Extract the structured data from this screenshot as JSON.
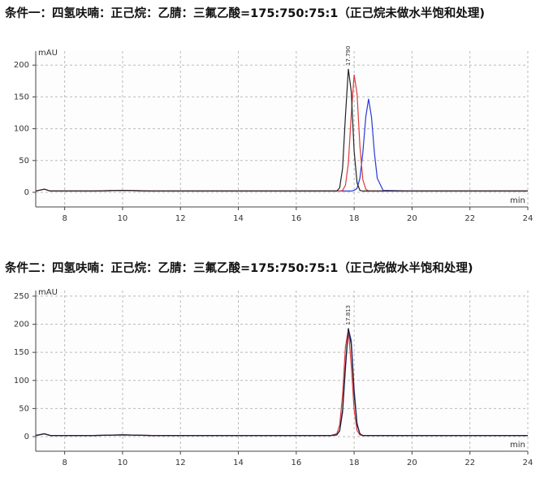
{
  "chart_data": [
    {
      "type": "line",
      "title": "条件一：四氢呋喃：正己烷：乙腈：三氟乙酸=175:750:75:1（正己烷未做水半饱和处理)",
      "y_label": "mAU",
      "x_label": "min",
      "annotation": "17.790",
      "xlim": [
        7,
        24
      ],
      "ylim": [
        -23,
        222
      ],
      "xticks": [
        8,
        10,
        12,
        14,
        16,
        18,
        20,
        22,
        24
      ],
      "yticks": [
        0,
        50,
        100,
        150,
        200
      ],
      "grid": true,
      "x": [
        7,
        7.3,
        7.5,
        8,
        9,
        10,
        11,
        12,
        13,
        14,
        15,
        16,
        17,
        17.2,
        17.4,
        17.5,
        17.6,
        17.7,
        17.8,
        17.9,
        18.0,
        18.1,
        18.2,
        18.3,
        18.4,
        18.5,
        18.6,
        18.7,
        18.8,
        19,
        20,
        21,
        22,
        23,
        24
      ],
      "series": [
        {
          "color": "#2a3ad6",
          "values": [
            2,
            5,
            2,
            2,
            2,
            3,
            2,
            2,
            2,
            2,
            2,
            2,
            2,
            2,
            2,
            2,
            2,
            2,
            2,
            2,
            3,
            6,
            22,
            62,
            118,
            147,
            118,
            62,
            22,
            3,
            2,
            2,
            2,
            2,
            2
          ]
        },
        {
          "color": "#e03a3a",
          "values": [
            2,
            5,
            2,
            2,
            2,
            3,
            2,
            2,
            2,
            2,
            2,
            2,
            2,
            2,
            2,
            2,
            3,
            11,
            46,
            123,
            185,
            155,
            73,
            20,
            5,
            2,
            2,
            2,
            2,
            2,
            2,
            2,
            2,
            2,
            2
          ]
        },
        {
          "color": "#222222",
          "values": [
            2,
            5,
            2,
            2,
            2,
            3,
            2,
            2,
            2,
            2,
            2,
            2,
            2,
            2,
            2,
            7,
            38,
            120,
            194,
            158,
            65,
            15,
            3,
            2,
            2,
            2,
            2,
            2,
            2,
            2,
            2,
            2,
            2,
            2,
            2
          ]
        }
      ]
    },
    {
      "type": "line",
      "title": "条件二：四氢呋喃：正己烷：乙腈：三氟乙酸=175:750:75:1（正己烷做水半饱和处理)",
      "y_label": "mAU",
      "x_label": "min",
      "annotation": "17.813",
      "xlim": [
        7,
        24
      ],
      "ylim": [
        -26,
        260
      ],
      "xticks": [
        8,
        10,
        12,
        14,
        16,
        18,
        20,
        22,
        24
      ],
      "yticks": [
        0,
        50,
        100,
        150,
        200,
        250
      ],
      "grid": true,
      "x": [
        7,
        7.3,
        7.5,
        8,
        9,
        10,
        11,
        12,
        13,
        14,
        15,
        16,
        17,
        17.2,
        17.4,
        17.5,
        17.6,
        17.7,
        17.8,
        17.9,
        18.0,
        18.1,
        18.2,
        18.3,
        18.4,
        18.5,
        18.6,
        18.7,
        18.8,
        19,
        20,
        21,
        22,
        23,
        24
      ],
      "series": [
        {
          "color": "#e03a3a",
          "values": [
            2,
            5,
            2,
            2,
            2,
            3,
            2,
            2,
            2,
            2,
            2,
            2,
            2,
            2,
            5,
            21,
            75,
            160,
            190,
            126,
            48,
            11,
            3,
            2,
            2,
            2,
            2,
            2,
            2,
            2,
            2,
            2,
            2,
            2,
            2
          ]
        },
        {
          "color": "#2a3ad6",
          "values": [
            2,
            5,
            2,
            2,
            2,
            3,
            2,
            2,
            2,
            2,
            2,
            2,
            2,
            2,
            3,
            10,
            43,
            120,
            192,
            171,
            84,
            24,
            5,
            2,
            2,
            2,
            2,
            2,
            2,
            2,
            2,
            2,
            2,
            2,
            2
          ]
        },
        {
          "color": "#222222",
          "values": [
            2,
            5,
            2,
            2,
            2,
            3,
            2,
            2,
            2,
            2,
            2,
            2,
            2,
            2,
            3,
            11,
            48,
            127,
            193,
            162,
            76,
            21,
            5,
            2,
            2,
            2,
            2,
            2,
            2,
            2,
            2,
            2,
            2,
            2,
            2
          ]
        }
      ]
    }
  ]
}
